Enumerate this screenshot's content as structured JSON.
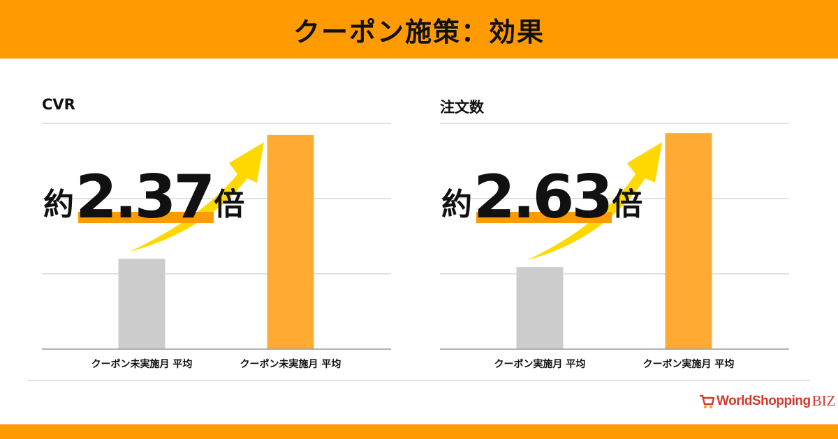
{
  "header": {
    "title": "クーポン施策：効果"
  },
  "colors": {
    "accent": "#ff9a00",
    "bar_before": "#cccccc",
    "bar_after": "#ffaa33",
    "arrow": "#ffd800",
    "grid": "#d0d0d0"
  },
  "chart_data": [
    {
      "type": "bar",
      "title": "CVR",
      "categories": [
        "クーポン未実施月 平均",
        "クーポン未実施月 平均"
      ],
      "values": [
        1.0,
        2.37
      ],
      "ylim": [
        0,
        2.5
      ],
      "grid": true,
      "annotation": {
        "prefix": "約",
        "number": "2.37",
        "suffix": "倍"
      }
    },
    {
      "type": "bar",
      "title": "注文数",
      "categories": [
        "クーポン実施月 平均",
        "クーポン実施月 平均"
      ],
      "values": [
        1.0,
        2.63
      ],
      "ylim": [
        0,
        2.75
      ],
      "grid": true,
      "annotation": {
        "prefix": "約",
        "number": "2.63",
        "suffix": "倍"
      }
    }
  ],
  "logo": {
    "text": "WorldShopping",
    "suffix": "BIZ",
    "icon": "cart-icon"
  }
}
